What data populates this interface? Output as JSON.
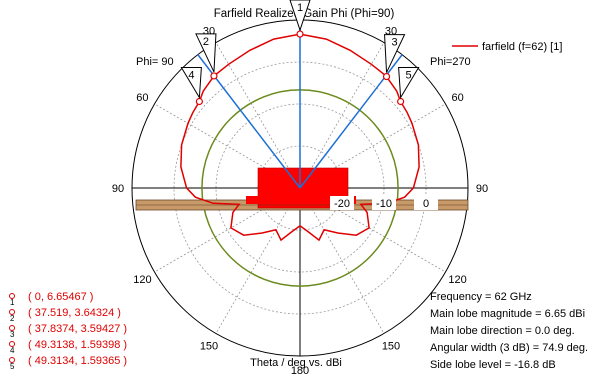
{
  "chart_data": {
    "type": "polar",
    "title": "Farfield Realized Gain Phi (Phi=90)",
    "xlabel": "Theta / deg vs. dBi",
    "legend": {
      "label": "farfield (f=62) [1]",
      "color": "#e00000",
      "placement": "top-right"
    },
    "left_half_label": "Phi= 90",
    "right_half_label": "Phi=270",
    "angle_ticks": [
      "30",
      "60",
      "90",
      "120",
      "150",
      "180",
      "150",
      "120",
      "90",
      "60",
      "30"
    ],
    "radial_ticks": [
      "-20",
      "-10",
      "0"
    ],
    "radial_range_dbi": [
      -30,
      10
    ],
    "series": [
      {
        "name": "farfield (f=62) [1]",
        "color": "#e00000",
        "theta_deg": [
          0,
          10,
          20,
          30,
          37.5,
          45,
          49.3,
          55,
          60,
          70,
          80,
          90,
          95,
          100,
          105,
          110,
          120,
          130,
          140,
          150,
          160,
          170,
          180
        ],
        "gain_dbi": [
          6.65,
          6.0,
          4.9,
          4.0,
          3.64,
          2.6,
          1.59,
          1.2,
          0.8,
          0.0,
          -1.2,
          -3.0,
          -5.0,
          -9.0,
          -15.0,
          -13.0,
          -11.0,
          -12.5,
          -16.0,
          -18.5,
          -16.8,
          -19.5,
          -21.0
        ]
      }
    ],
    "markers": [
      {
        "id": "1",
        "theta": 0,
        "value": 6.65467,
        "text": "( 0, 6.65467 )"
      },
      {
        "id": "2",
        "theta": 37.519,
        "value": 3.64324,
        "text": "( 37.519, 3.64324 )"
      },
      {
        "id": "3",
        "theta": 37.8374,
        "value": 3.59427,
        "text": "( 37.8374, 3.59427 )"
      },
      {
        "id": "4",
        "theta": 49.3138,
        "value": 1.59398,
        "text": "( 49.3138, 1.59398 )"
      },
      {
        "id": "5",
        "theta": 49.3134,
        "value": 1.59365,
        "text": "( 49.3134, 1.59365 )"
      }
    ],
    "main_lobe_direction_deg": 0,
    "beamwidth_3db_deg": 74.9,
    "reference_circle_dbi": -6.65,
    "info_lines": [
      "Frequency = 62 GHz",
      "Main lobe magnitude =     6.65 dBi",
      "Main lobe direction =    0.0 deg.",
      "Angular width (3 dB) =  74.9 deg.",
      "Side lobe level =  -16.8 dB"
    ],
    "colors": {
      "curve": "#e00000",
      "beam_edges": "#1f6fd6",
      "reference_circle": "#6b8a1c",
      "structure_fill": "#ff0000",
      "substrate": "#c89a6a"
    }
  }
}
